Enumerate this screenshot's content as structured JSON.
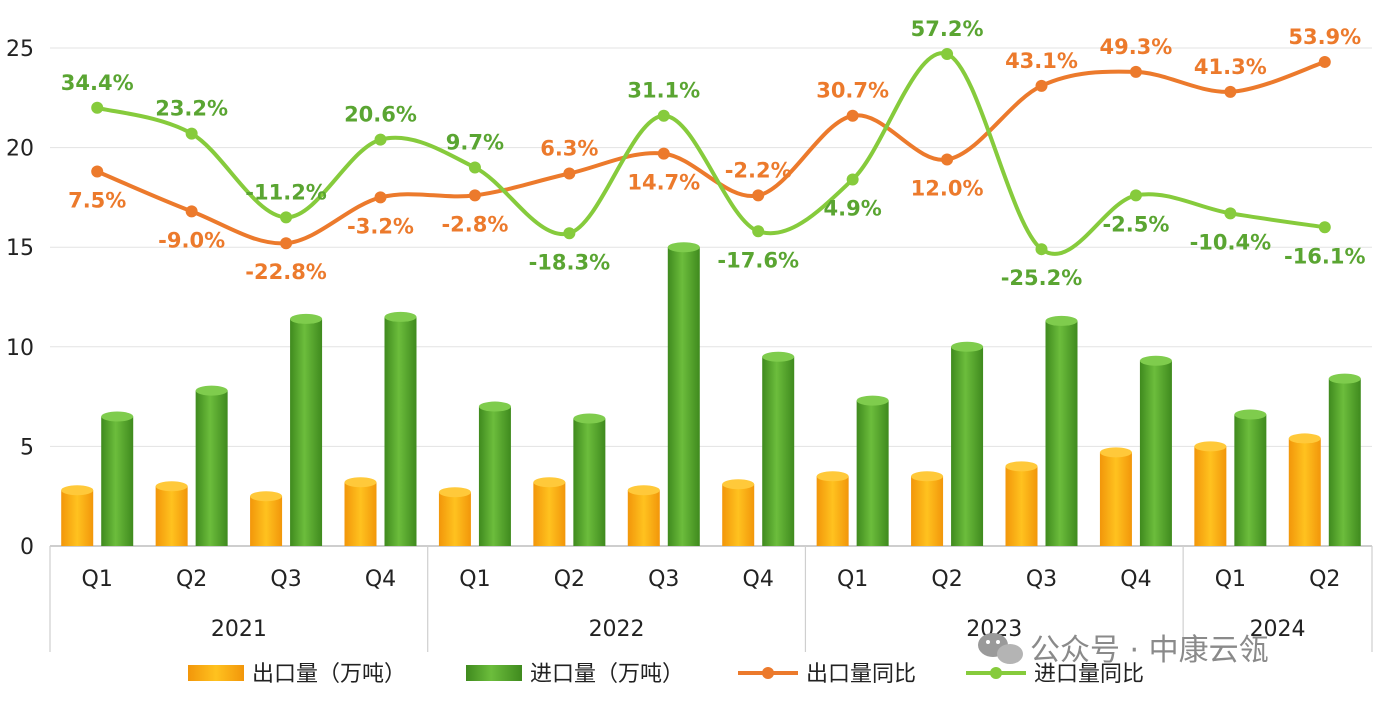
{
  "chart_data": {
    "type": "bar",
    "categories": [
      "Q1",
      "Q2",
      "Q3",
      "Q4",
      "Q1",
      "Q2",
      "Q3",
      "Q4",
      "Q1",
      "Q2",
      "Q3",
      "Q4",
      "Q1",
      "Q2"
    ],
    "years": [
      {
        "label": "2021",
        "count": 4
      },
      {
        "label": "2022",
        "count": 4
      },
      {
        "label": "2023",
        "count": 4
      },
      {
        "label": "2024",
        "count": 2
      }
    ],
    "ylim": [
      0,
      25
    ],
    "yticks": [
      "0",
      "5",
      "10",
      "15",
      "20",
      "25"
    ],
    "grid": true,
    "legend_position": "bottom",
    "series": [
      {
        "name": "出口量（万吨）",
        "type": "bar",
        "color": "#f6a20e",
        "values": [
          2.8,
          3.0,
          2.5,
          3.2,
          2.7,
          3.2,
          2.8,
          3.1,
          3.5,
          3.5,
          4.0,
          4.7,
          5.0,
          5.4
        ]
      },
      {
        "name": "进口量（万吨）",
        "type": "bar",
        "color": "#59a431",
        "values": [
          6.5,
          7.8,
          11.4,
          11.5,
          7.0,
          6.4,
          15.0,
          9.5,
          7.3,
          10.0,
          11.3,
          9.3,
          6.6,
          8.4
        ]
      },
      {
        "name": "出口量同比",
        "type": "line",
        "color": "#ec7a2c",
        "values": [
          18.8,
          16.8,
          15.2,
          17.5,
          17.6,
          18.7,
          19.7,
          17.6,
          21.6,
          19.4,
          23.1,
          23.8,
          22.8,
          24.3
        ],
        "labels": [
          "7.5%",
          "-9.0%",
          "-22.8%",
          "-3.2%",
          "-2.8%",
          "6.3%",
          "14.7%",
          "-2.2%",
          "30.7%",
          "12.0%",
          "43.1%",
          "49.3%",
          "41.3%",
          "53.9%"
        ]
      },
      {
        "name": "进口量同比",
        "type": "line",
        "color": "#86cb3c",
        "values": [
          22.0,
          20.7,
          16.5,
          20.4,
          19.0,
          15.7,
          21.6,
          15.8,
          18.4,
          24.7,
          14.9,
          17.6,
          16.7,
          16.0
        ],
        "labels": [
          "34.4%",
          "23.2%",
          "-11.2%",
          "20.6%",
          "9.7%",
          "-18.3%",
          "31.1%",
          "-17.6%",
          "4.9%",
          "57.2%",
          "-25.2%",
          "-2.5%",
          "-10.4%",
          "-16.1%"
        ]
      }
    ]
  },
  "watermark": "公众号 · 中康云瓴"
}
